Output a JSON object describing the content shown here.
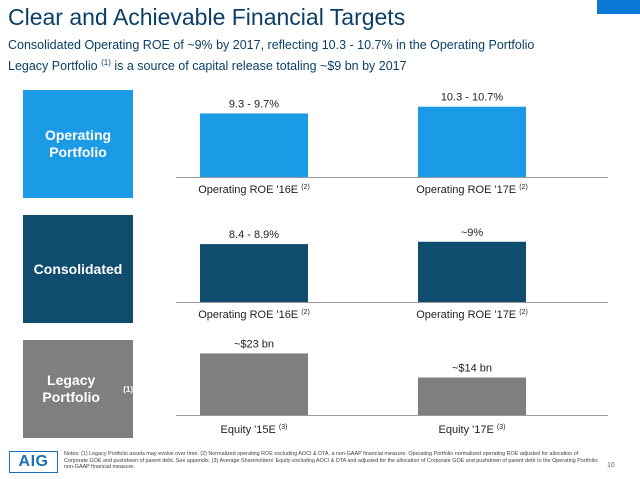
{
  "title": "Clear and Achievable Financial Targets",
  "subtitle_line1": "Consolidated Operating ROE of ~9% by 2017, reflecting 10.3 - 10.7% in the Operating Portfolio",
  "subtitle_line2_pre": "Legacy Portfolio",
  "subtitle_line2_sup": "(1)",
  "subtitle_line2_post": " is a source of capital release totaling ~$9 bn by 2017",
  "panels": [
    {
      "label": "Operating Portfolio",
      "label_sup": "",
      "color": "#1b9be6"
    },
    {
      "label": "Consolidated",
      "label_sup": "",
      "color": "#0f4c6e"
    },
    {
      "label": "Legacy Portfolio",
      "label_sup": "(1)",
      "color": "#7f7f7f"
    }
  ],
  "chart_data": [
    {
      "type": "bar",
      "categories": [
        "Operating ROE '16E",
        "Operating ROE '17E"
      ],
      "category_sups": [
        "(2)",
        "(2)"
      ],
      "data_labels": [
        "9.3 - 9.7%",
        "10.3 - 10.7%"
      ],
      "values": [
        9.5,
        10.5
      ],
      "ylim": [
        0,
        13
      ],
      "color": "#1b9be6"
    },
    {
      "type": "bar",
      "categories": [
        "Operating ROE '16E",
        "Operating ROE '17E"
      ],
      "category_sups": [
        "(2)",
        "(2)"
      ],
      "data_labels": [
        "8.4 - 8.9%",
        "~9%"
      ],
      "values": [
        8.65,
        9.0
      ],
      "ylim": [
        0,
        13
      ],
      "color": "#0f4c6e"
    },
    {
      "type": "bar",
      "categories": [
        "Equity '15E",
        "Equity '17E"
      ],
      "category_sups": [
        "(3)",
        "(3)"
      ],
      "data_labels": [
        "~$23 bn",
        "~$14 bn"
      ],
      "values": [
        23,
        14
      ],
      "ylim": [
        0,
        28
      ],
      "color": "#7f7f7f"
    }
  ],
  "footer": {
    "logo": "AIG",
    "notes": "Notes: (1) Legacy Portfolio assets may evolve over time. (2) Normalized operating ROE excluding AOCI & DTA, a non-GAAP financial measure. Operating Portfolio normalized operating ROE adjusted for allocation of Corporate GOE and pushdown of parent debt. See appendix. (3) Average Shareholders' Equity excluding AOCI & DTA and adjusted for the allocation of Corporate GOE and pushdown of parent debt to the Operating Portfolio; non-GAAP financial measure.",
    "page": "10"
  }
}
